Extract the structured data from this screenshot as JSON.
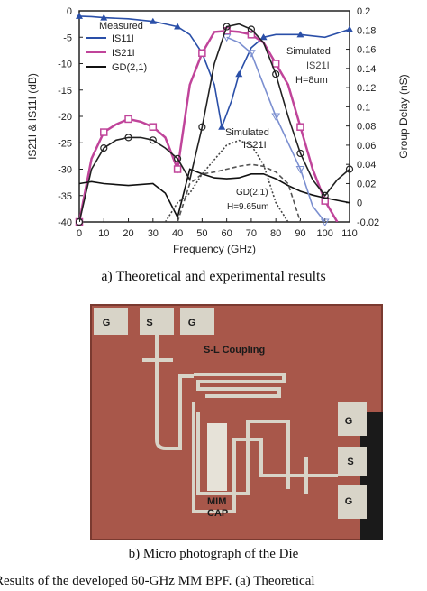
{
  "chart_data": {
    "type": "line",
    "xlabel": "Frequency (GHz)",
    "ylabel_left": "IS21I & IS11I  (dB)",
    "ylabel_right": "Group Delay (nS)",
    "xlim": [
      0,
      110
    ],
    "ylim_left": [
      -40,
      0
    ],
    "ylim_right": [
      -0.02,
      0.2
    ],
    "xticks": [
      "0",
      "10",
      "20",
      "30",
      "40",
      "50",
      "60",
      "70",
      "80",
      "90",
      "100",
      "110"
    ],
    "yticks_left": [
      "0",
      "-5",
      "-10",
      "-15",
      "-20",
      "-25",
      "-30",
      "-35",
      "-40"
    ],
    "yticks_right": [
      "0.2",
      "0.18",
      "0.16",
      "0.14",
      "0.12",
      "0.1",
      "0.08",
      "0.06",
      "0.04",
      "0.02",
      "0",
      "-0.02"
    ],
    "legend_title": "Measured",
    "series": [
      {
        "name": "IS11I",
        "axis": "left",
        "color": "#2a4fa8",
        "marker": "triangle",
        "x": [
          0,
          5,
          10,
          20,
          30,
          35,
          40,
          45,
          50,
          55,
          58,
          62,
          65,
          70,
          75,
          80,
          90,
          100,
          110
        ],
        "y": [
          -1,
          -1.1,
          -1.3,
          -1.5,
          -2,
          -2.5,
          -3,
          -4.5,
          -8,
          -14,
          -22,
          -17,
          -12,
          -7,
          -5,
          -4.5,
          -4.5,
          -5,
          -3.5
        ]
      },
      {
        "name": "IS21I",
        "axis": "left",
        "color": "#c0449a",
        "marker": "square",
        "x": [
          0,
          5,
          10,
          15,
          20,
          25,
          30,
          35,
          40,
          45,
          50,
          55,
          60,
          65,
          70,
          75,
          80,
          85,
          90,
          95,
          100,
          105
        ],
        "y": [
          -40,
          -28,
          -23,
          -21.5,
          -20.5,
          -21,
          -22,
          -24,
          -30,
          -14,
          -8,
          -4,
          -3.8,
          -4,
          -4.5,
          -6,
          -10,
          -14,
          -22,
          -30,
          -36,
          -40
        ]
      },
      {
        "name": "GD(2,1)",
        "axis": "right",
        "color": "#111111",
        "marker": "none",
        "x": [
          0,
          5,
          10,
          20,
          30,
          35,
          40,
          45,
          50,
          55,
          60,
          65,
          70,
          75,
          80,
          85,
          90,
          95,
          100,
          110
        ],
        "y": [
          0.02,
          0.022,
          0.02,
          0.018,
          0.02,
          0.01,
          -0.015,
          0.035,
          0.03,
          0.026,
          0.025,
          0.026,
          0.03,
          0.03,
          0.025,
          0.018,
          0.012,
          0.008,
          0.005,
          0.0
        ]
      },
      {
        "name": "Simulated IS21I H=8um",
        "axis": "left",
        "color": "#7b8fd0",
        "marker": "triangle-down",
        "x": [
          60,
          65,
          70,
          75,
          80,
          85,
          90,
          95,
          100
        ],
        "y": [
          -5,
          -6,
          -8,
          -14,
          -20,
          -25,
          -30,
          -37,
          -40
        ]
      },
      {
        "name": "Simulated IS21I",
        "axis": "left",
        "color": "#222222",
        "marker": "circle",
        "x": [
          0,
          5,
          10,
          15,
          20,
          25,
          30,
          35,
          40,
          45,
          50,
          55,
          60,
          65,
          70,
          75,
          80,
          85,
          90,
          95,
          100,
          105,
          110
        ],
        "y": [
          -40,
          -30,
          -26,
          -24.5,
          -24,
          -24,
          -24.5,
          -26,
          -28,
          -32,
          -22,
          -10,
          -3,
          -2.5,
          -3.5,
          -6,
          -12,
          -20,
          -27,
          -32,
          -35,
          -32,
          -30
        ]
      },
      {
        "name": "GD(2,1) H=9.65um",
        "axis": "right",
        "color": "#555555",
        "marker": "none",
        "dash": true,
        "x": [
          40,
          45,
          50,
          55,
          60,
          65,
          70,
          75,
          80,
          85,
          90
        ],
        "y": [
          -0.02,
          0.02,
          0.03,
          0.032,
          0.035,
          0.038,
          0.04,
          0.038,
          0.032,
          0.02,
          -0.02
        ]
      },
      {
        "name": "GD dotted",
        "axis": "right",
        "color": "#444444",
        "marker": "none",
        "dotted": true,
        "x": [
          35,
          40,
          45,
          50,
          55,
          60,
          65,
          70,
          75,
          80,
          85
        ],
        "y": [
          -0.02,
          0.0,
          0.01,
          0.03,
          0.045,
          0.06,
          0.065,
          0.06,
          0.04,
          0.0,
          -0.02
        ]
      }
    ],
    "annotations": {
      "sim1": "Simulated",
      "sim1_series": "IS21I",
      "sim1_h": "H=8um",
      "sim2": "Simulated",
      "sim2_series": "IS21I",
      "gd2_label": "GD(2,1)",
      "gd2_h": "H=9.65um"
    }
  },
  "captions": {
    "a": "a) Theoretical and experimental results",
    "b": "b) Micro photograph of the Die",
    "figure": "Results of the developed 60-GHz MM BPF. (a) Theoretical"
  },
  "photo": {
    "pads_top": [
      "G",
      "S",
      "G"
    ],
    "pads_right": [
      "G",
      "S",
      "G"
    ],
    "coupling_label": "S-L Coupling",
    "cap_label_1": "MIM",
    "cap_label_2": "CAP",
    "colors": {
      "die": "#a8574a",
      "metal": "#d8d4c8",
      "text": "#1a1a1a"
    }
  }
}
